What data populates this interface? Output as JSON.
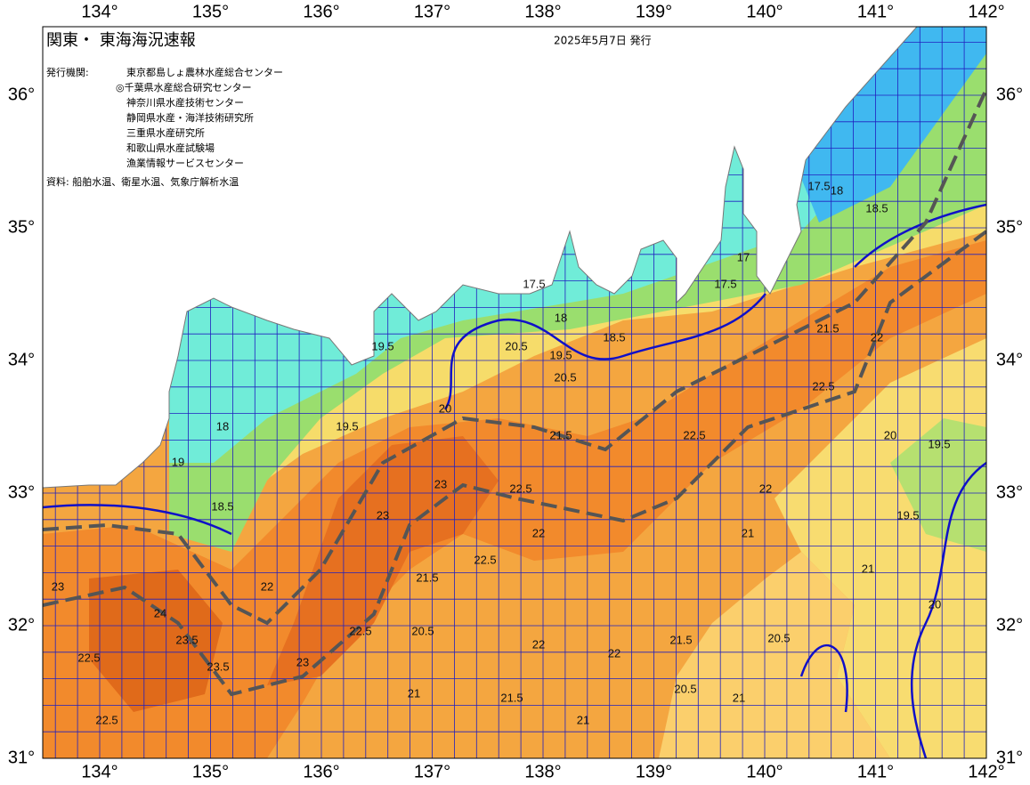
{
  "map": {
    "title": "関東・ 東海海況速報",
    "issued": "2025年5月7日 発行",
    "agencies_label": "発行機関:",
    "agencies": [
      "東京都島しょ農林水産総合センター",
      "◎千葉県水産総合研究センター",
      "神奈川県水産技術センター",
      "静岡県水産・海洋技術研究所",
      "三重県水産研究所",
      "和歌山県水産試験場",
      "漁業情報サービスセンター"
    ],
    "source": "資料: 船舶水温、衛星水温、気象庁解析水温",
    "lon_ticks": [
      {
        "value": 134,
        "label": "134°"
      },
      {
        "value": 135,
        "label": "135°"
      },
      {
        "value": 136,
        "label": "136°"
      },
      {
        "value": 137,
        "label": "137°"
      },
      {
        "value": 138,
        "label": "138°"
      },
      {
        "value": 139,
        "label": "139°"
      },
      {
        "value": 140,
        "label": "140°"
      },
      {
        "value": 141,
        "label": "141°"
      },
      {
        "value": 142,
        "label": "142°"
      }
    ],
    "lat_ticks": [
      {
        "value": 31,
        "label": "31°"
      },
      {
        "value": 32,
        "label": "32°"
      },
      {
        "value": 33,
        "label": "33°"
      },
      {
        "value": 34,
        "label": "34°"
      },
      {
        "value": 35,
        "label": "35°"
      },
      {
        "value": 36,
        "label": "36°"
      }
    ],
    "contour_labels": [
      22.5,
      23,
      23.5,
      23.5,
      24,
      22.5,
      22,
      23,
      22.5,
      23,
      23,
      22.5,
      22,
      22.5,
      21.5,
      20.5,
      21,
      21.5,
      21,
      22,
      22,
      21.5,
      20.5,
      21,
      20.5,
      21,
      20,
      19.5,
      20,
      19.5,
      21.5,
      22,
      22.5,
      22,
      21,
      22.5,
      21.5,
      20.5,
      20,
      19.5,
      19,
      18,
      18.5,
      19.5,
      20.5,
      19.5,
      18,
      18.5,
      17.5,
      17.5,
      17,
      18,
      18.5,
      17.5
    ]
  }
}
